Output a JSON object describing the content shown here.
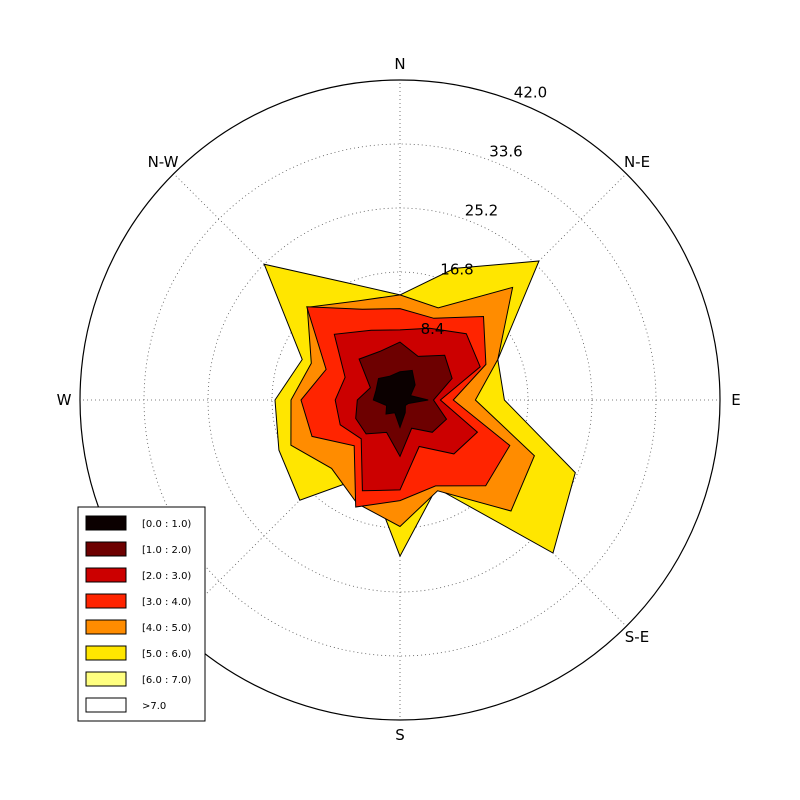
{
  "chart_data": {
    "type": "windrose",
    "directions": [
      "N",
      "N-E",
      "E",
      "S-E",
      "S",
      "W",
      "N-W"
    ],
    "angles_deg": [
      0,
      22.5,
      45,
      67.5,
      90,
      112.5,
      135,
      157.5,
      180,
      202.5,
      225,
      247.5,
      270,
      292.5,
      315,
      337.5
    ],
    "radial_ticks": [
      "8.4",
      "16.8",
      "25.2",
      "33.6",
      "42.0"
    ],
    "radial_tick_values": [
      8.4,
      16.8,
      25.2,
      33.6,
      42.0
    ],
    "rmax": 42.0,
    "grid": true,
    "legend_placement": "lower-left",
    "series": [
      {
        "name": "[0.0 : 1.0)",
        "color": "#0b0000",
        "radii": [
          3.7,
          4.2,
          2.8,
          1.5,
          3.7,
          1.2,
          1.0,
          1.8,
          3.6,
          1.8,
          2.6,
          1.9,
          3.5,
          3.4,
          4.0,
          3.4
        ]
      },
      {
        "name": "[1.0 : 2.0)",
        "color": "#6d0000",
        "radii": [
          7.6,
          6.2,
          8.3,
          7.4,
          4.4,
          6.6,
          6.0,
          4.0,
          7.4,
          4.6,
          6.3,
          6.3,
          5.6,
          4.2,
          7.6,
          6.9
        ]
      },
      {
        "name": "[2.0 : 3.0)",
        "color": "#cc0000",
        "radii": [
          9.2,
          10.2,
          12.3,
          11.4,
          5.3,
          11.0,
          10.0,
          6.6,
          11.8,
          12.9,
          7.2,
          8.5,
          8.5,
          7.8,
          12.2,
          9.9
        ]
      },
      {
        "name": "[3.0 : 4.0)",
        "color": "#ff2400",
        "radii": [
          12.0,
          11.6,
          15.5,
          12.2,
          7.0,
          15.6,
          15.9,
          12.2,
          13.2,
          15.2,
          8.5,
          12.5,
          13.0,
          10.5,
          17.3,
          12.9
        ]
      },
      {
        "name": "[4.0 : 5.0)",
        "color": "#ff8c00",
        "radii": [
          13.8,
          13.1,
          20.9,
          13.9,
          9.9,
          19.1,
          20.6,
          12.9,
          16.6,
          14.7,
          12.7,
          15.5,
          14.3,
          12.6,
          17.2,
          14.1
        ]
      },
      {
        "name": "[5.0 : 6.0)",
        "color": "#ffe600",
        "radii": [
          13.8,
          18.7,
          25.8,
          13.9,
          13.7,
          24.9,
          28.4,
          12.5,
          20.5,
          10.7,
          18.6,
          17.2,
          16.4,
          13.9,
          25.2,
          16.5
        ]
      },
      {
        "name": "[6.0 : 7.0)",
        "color": "#ffff80",
        "radii": []
      },
      {
        "name": ">7.0",
        "color": "#ffffff",
        "radii": []
      }
    ]
  }
}
